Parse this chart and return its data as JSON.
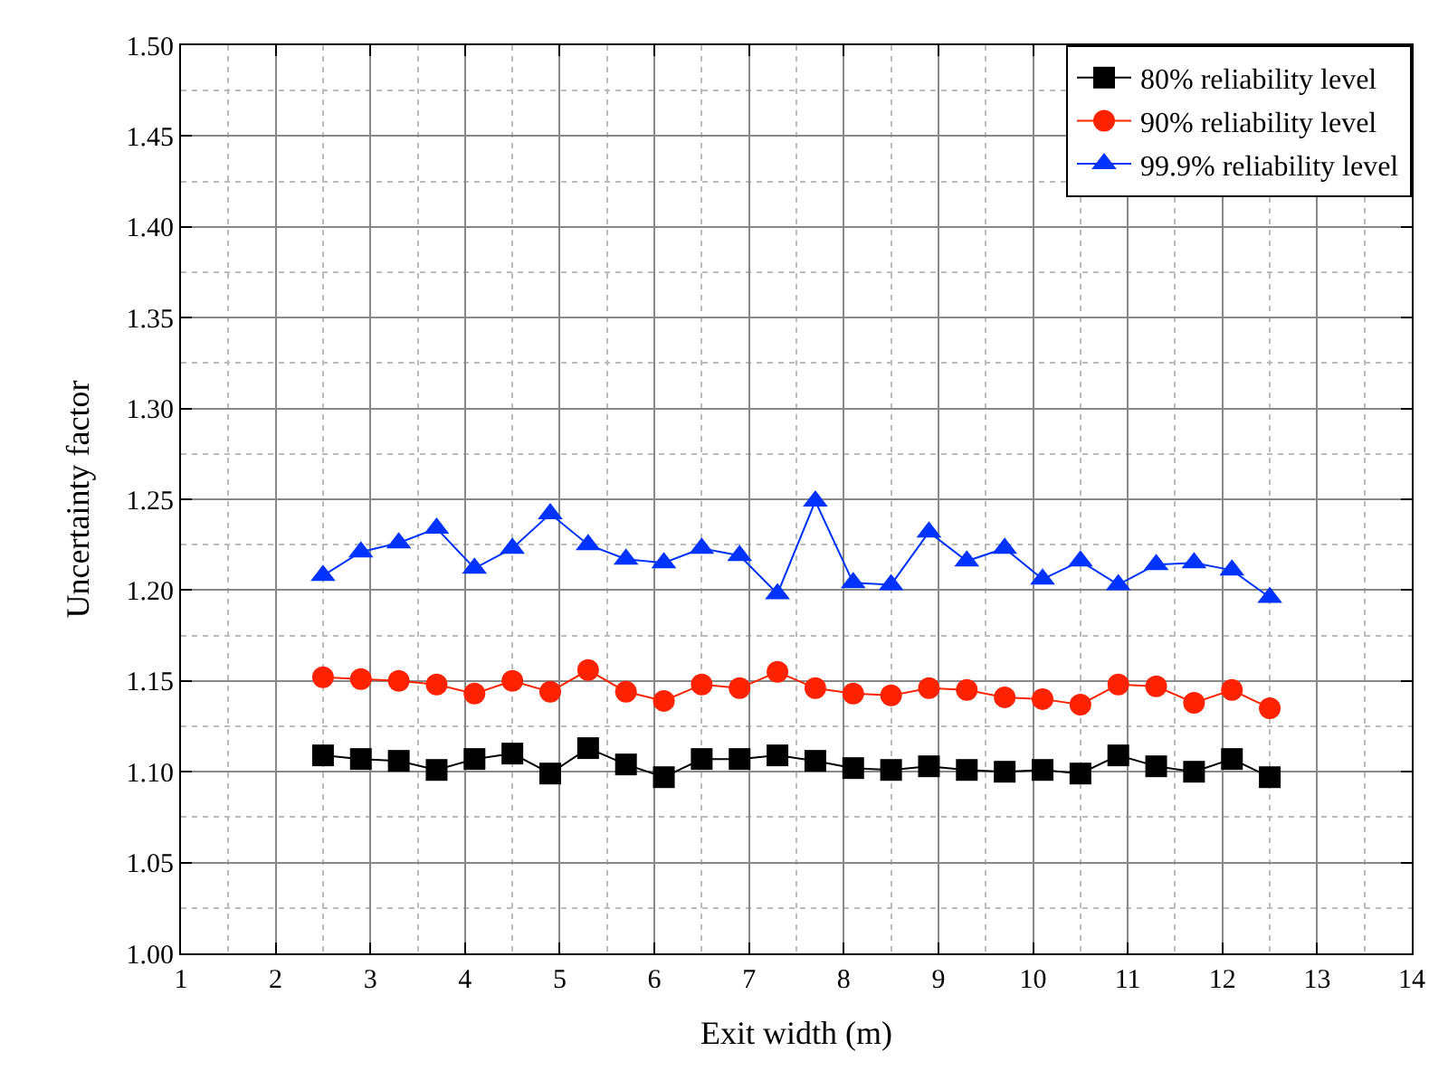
{
  "chart_data": {
    "type": "line",
    "xlabel": "Exit width (m)",
    "ylabel": "Uncertainty factor",
    "x": [
      2.5,
      2.9,
      3.3,
      3.7,
      4.1,
      4.5,
      4.9,
      5.3,
      5.7,
      6.1,
      6.5,
      6.9,
      7.3,
      7.7,
      8.1,
      8.5,
      8.9,
      9.3,
      9.7,
      10.1,
      10.5,
      10.9,
      11.3,
      11.7,
      12.1,
      12.5
    ],
    "series": [
      {
        "name": "80% reliability level",
        "color": "#000000",
        "marker": "square",
        "values": [
          1.109,
          1.107,
          1.106,
          1.101,
          1.107,
          1.11,
          1.099,
          1.113,
          1.104,
          1.097,
          1.107,
          1.107,
          1.109,
          1.106,
          1.102,
          1.101,
          1.103,
          1.101,
          1.1,
          1.101,
          1.099,
          1.109,
          1.103,
          1.1,
          1.107,
          1.097
        ]
      },
      {
        "name": "90% reliability level",
        "color": "#ff2200",
        "marker": "circle",
        "values": [
          1.152,
          1.151,
          1.15,
          1.148,
          1.143,
          1.15,
          1.144,
          1.156,
          1.144,
          1.139,
          1.148,
          1.146,
          1.155,
          1.146,
          1.143,
          1.142,
          1.146,
          1.145,
          1.141,
          1.14,
          1.137,
          1.148,
          1.147,
          1.138,
          1.145,
          1.135
        ]
      },
      {
        "name": "99.9% reliability level",
        "color": "#0033ff",
        "marker": "triangle",
        "values": [
          1.208,
          1.221,
          1.226,
          1.234,
          1.212,
          1.223,
          1.242,
          1.225,
          1.217,
          1.215,
          1.223,
          1.219,
          1.198,
          1.249,
          1.204,
          1.203,
          1.232,
          1.216,
          1.223,
          1.206,
          1.216,
          1.203,
          1.214,
          1.215,
          1.211,
          1.196
        ]
      }
    ],
    "xlim": [
      1,
      14
    ],
    "xticks": [
      1,
      2,
      3,
      4,
      5,
      6,
      7,
      8,
      9,
      10,
      11,
      12,
      13,
      14
    ],
    "ylim": [
      1.0,
      1.5
    ],
    "yticks": [
      {
        "value": 1.0,
        "label": "1.00"
      },
      {
        "value": 1.05,
        "label": "1.05"
      },
      {
        "value": 1.1,
        "label": "1.10"
      },
      {
        "value": 1.15,
        "label": "1.15"
      },
      {
        "value": 1.2,
        "label": "1.20"
      },
      {
        "value": 1.25,
        "label": "1.25"
      },
      {
        "value": 1.3,
        "label": "1.30"
      },
      {
        "value": 1.35,
        "label": "1.35"
      },
      {
        "value": 1.4,
        "label": "1.40"
      },
      {
        "value": 1.45,
        "label": "1.45"
      },
      {
        "value": 1.5,
        "label": "1.50"
      }
    ],
    "grid": true,
    "legend": "top right",
    "line_style": "solid"
  }
}
